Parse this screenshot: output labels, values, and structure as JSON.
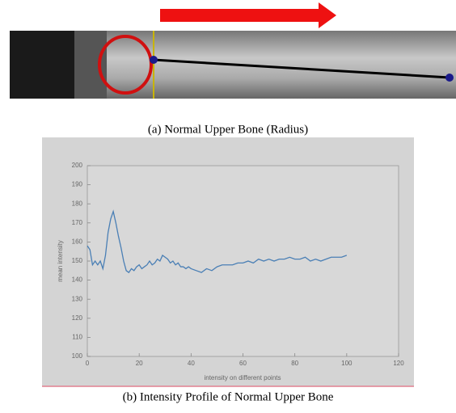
{
  "captions": [
    "(a) Normal Upper Bone (Radius)",
    "(b) Intensity Profile of Normal Upper Bone"
  ],
  "chart_data": {
    "type": "line",
    "xlabel": "intensity on different points",
    "ylabel": "mean intensity",
    "xlim": [
      0,
      120
    ],
    "xticks": [
      0,
      20,
      40,
      60,
      80,
      100,
      120
    ],
    "ylim": [
      100,
      200
    ],
    "yticks": [
      100,
      110,
      120,
      130,
      140,
      150,
      160,
      170,
      180,
      190,
      200
    ],
    "x": [
      0,
      1,
      2,
      3,
      4,
      5,
      6,
      7,
      8,
      9,
      10,
      11,
      12,
      13,
      14,
      15,
      16,
      17,
      18,
      19,
      20,
      21,
      22,
      23,
      24,
      25,
      26,
      27,
      28,
      29,
      30,
      31,
      32,
      33,
      34,
      35,
      36,
      37,
      38,
      39,
      40,
      42,
      44,
      46,
      48,
      50,
      52,
      54,
      56,
      58,
      60,
      62,
      64,
      66,
      68,
      70,
      72,
      74,
      76,
      78,
      80,
      82,
      84,
      86,
      88,
      90,
      92,
      94,
      96,
      98,
      100
    ],
    "series": [
      {
        "color": "#4a7fb5",
        "values": [
          158,
          156,
          148,
          150,
          148,
          150,
          146,
          153,
          165,
          172,
          176,
          170,
          163,
          157,
          150,
          145,
          144,
          146,
          145,
          147,
          148,
          146,
          147,
          148,
          150,
          148,
          149,
          151,
          150,
          153,
          152,
          151,
          149,
          150,
          148,
          149,
          147,
          147,
          146,
          147,
          146,
          145,
          144,
          146,
          145,
          147,
          148,
          148,
          148,
          149,
          149,
          150,
          149,
          151,
          150,
          151,
          150,
          151,
          151,
          152,
          151,
          151,
          152,
          150,
          151,
          150,
          151,
          152,
          152,
          152,
          153
        ]
      }
    ]
  }
}
